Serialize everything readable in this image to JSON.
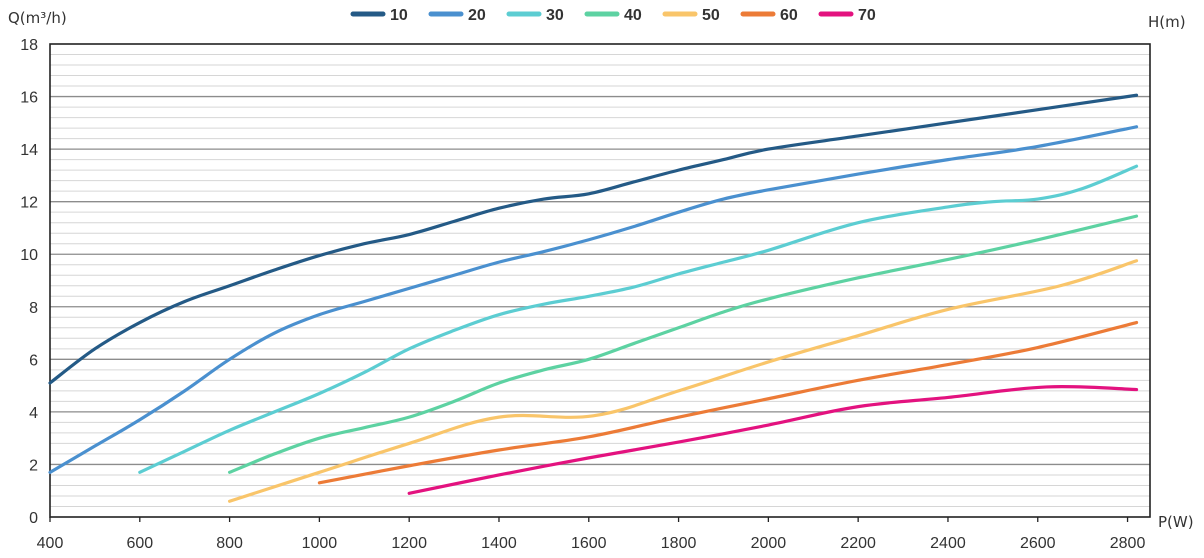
{
  "chart_data": {
    "type": "line",
    "ylabel": "Q(m³/h)",
    "xlabel": "P(W)",
    "right_label": "H(m)",
    "xlim": [
      400,
      2850
    ],
    "ylim": [
      0,
      18
    ],
    "x_ticks": [
      400,
      600,
      800,
      1000,
      1200,
      1400,
      1600,
      1800,
      2000,
      2200,
      2400,
      2600,
      2800
    ],
    "y_ticks": [
      0,
      2,
      4,
      6,
      8,
      10,
      12,
      14,
      16,
      18
    ],
    "grid": "horizontal",
    "legend_position": "top-center",
    "series": [
      {
        "name": "10",
        "color": "#245a86",
        "points": [
          [
            400,
            5.1
          ],
          [
            500,
            6.4
          ],
          [
            600,
            7.4
          ],
          [
            700,
            8.2
          ],
          [
            800,
            8.8
          ],
          [
            900,
            9.4
          ],
          [
            1000,
            9.95
          ],
          [
            1100,
            10.4
          ],
          [
            1200,
            10.75
          ],
          [
            1300,
            11.25
          ],
          [
            1400,
            11.75
          ],
          [
            1500,
            12.1
          ],
          [
            1600,
            12.3
          ],
          [
            1700,
            12.75
          ],
          [
            1800,
            13.2
          ],
          [
            1900,
            13.6
          ],
          [
            2000,
            14.0
          ],
          [
            2200,
            14.5
          ],
          [
            2400,
            15.0
          ],
          [
            2600,
            15.5
          ],
          [
            2820,
            16.05
          ]
        ]
      },
      {
        "name": "20",
        "color": "#4a90cf",
        "points": [
          [
            400,
            1.7
          ],
          [
            500,
            2.7
          ],
          [
            600,
            3.7
          ],
          [
            700,
            4.8
          ],
          [
            800,
            6.0
          ],
          [
            900,
            7.0
          ],
          [
            1000,
            7.7
          ],
          [
            1100,
            8.2
          ],
          [
            1200,
            8.7
          ],
          [
            1300,
            9.2
          ],
          [
            1400,
            9.7
          ],
          [
            1500,
            10.1
          ],
          [
            1600,
            10.55
          ],
          [
            1700,
            11.05
          ],
          [
            1800,
            11.6
          ],
          [
            1900,
            12.1
          ],
          [
            2000,
            12.45
          ],
          [
            2200,
            13.05
          ],
          [
            2400,
            13.6
          ],
          [
            2600,
            14.1
          ],
          [
            2820,
            14.85
          ]
        ]
      },
      {
        "name": "30",
        "color": "#5ccdd2",
        "points": [
          [
            600,
            1.7
          ],
          [
            700,
            2.5
          ],
          [
            800,
            3.3
          ],
          [
            900,
            4.0
          ],
          [
            1000,
            4.7
          ],
          [
            1100,
            5.5
          ],
          [
            1200,
            6.4
          ],
          [
            1300,
            7.1
          ],
          [
            1400,
            7.7
          ],
          [
            1500,
            8.1
          ],
          [
            1600,
            8.4
          ],
          [
            1700,
            8.75
          ],
          [
            1800,
            9.25
          ],
          [
            1900,
            9.7
          ],
          [
            2000,
            10.15
          ],
          [
            2200,
            11.2
          ],
          [
            2400,
            11.8
          ],
          [
            2500,
            12.0
          ],
          [
            2600,
            12.1
          ],
          [
            2700,
            12.5
          ],
          [
            2820,
            13.35
          ]
        ]
      },
      {
        "name": "40",
        "color": "#5dd2a2",
        "points": [
          [
            800,
            1.7
          ],
          [
            900,
            2.4
          ],
          [
            1000,
            3.0
          ],
          [
            1100,
            3.4
          ],
          [
            1200,
            3.8
          ],
          [
            1300,
            4.4
          ],
          [
            1400,
            5.1
          ],
          [
            1500,
            5.6
          ],
          [
            1600,
            6.0
          ],
          [
            1700,
            6.6
          ],
          [
            1800,
            7.2
          ],
          [
            1900,
            7.8
          ],
          [
            2000,
            8.3
          ],
          [
            2200,
            9.1
          ],
          [
            2400,
            9.8
          ],
          [
            2600,
            10.55
          ],
          [
            2820,
            11.45
          ]
        ]
      },
      {
        "name": "50",
        "color": "#f9c56a",
        "points": [
          [
            800,
            0.6
          ],
          [
            1000,
            1.7
          ],
          [
            1200,
            2.8
          ],
          [
            1400,
            3.8
          ],
          [
            1610,
            3.85
          ],
          [
            1800,
            4.8
          ],
          [
            2000,
            5.9
          ],
          [
            2200,
            6.9
          ],
          [
            2400,
            7.9
          ],
          [
            2650,
            8.8
          ],
          [
            2820,
            9.75
          ]
        ]
      },
      {
        "name": "60",
        "color": "#ec7b37",
        "points": [
          [
            1000,
            1.3
          ],
          [
            1200,
            1.95
          ],
          [
            1400,
            2.55
          ],
          [
            1600,
            3.05
          ],
          [
            1800,
            3.8
          ],
          [
            2000,
            4.5
          ],
          [
            2200,
            5.2
          ],
          [
            2400,
            5.8
          ],
          [
            2600,
            6.45
          ],
          [
            2820,
            7.4
          ]
        ]
      },
      {
        "name": "70",
        "color": "#e3127f",
        "points": [
          [
            1200,
            0.9
          ],
          [
            1400,
            1.6
          ],
          [
            1600,
            2.25
          ],
          [
            1800,
            2.85
          ],
          [
            2000,
            3.5
          ],
          [
            2200,
            4.2
          ],
          [
            2400,
            4.55
          ],
          [
            2620,
            4.95
          ],
          [
            2820,
            4.85
          ]
        ]
      }
    ]
  }
}
